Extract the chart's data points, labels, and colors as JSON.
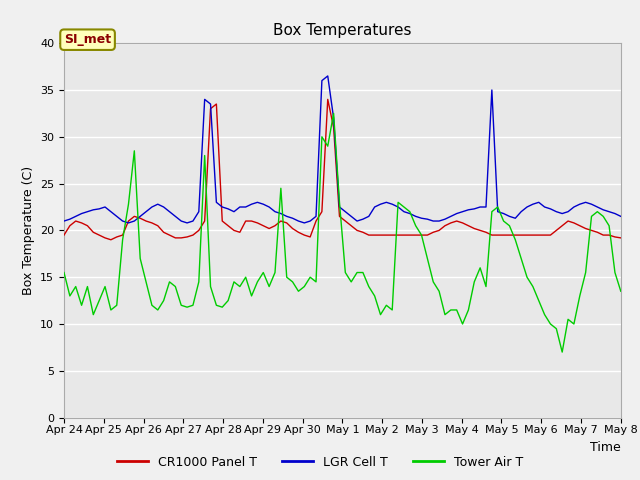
{
  "title": "Box Temperatures",
  "xlabel": "Time",
  "ylabel": "Box Temperature (C)",
  "ylim": [
    0,
    40
  ],
  "yticks": [
    0,
    5,
    10,
    15,
    20,
    25,
    30,
    35,
    40
  ],
  "bg_color": "#e8e8e8",
  "grid_color": "#ffffff",
  "annotation_text": "SI_met",
  "annotation_bg": "#ffffbb",
  "annotation_border": "#888800",
  "legend_entries": [
    "CR1000 Panel T",
    "LGR Cell T",
    "Tower Air T"
  ],
  "line_colors": [
    "#cc0000",
    "#0000cc",
    "#00cc00"
  ],
  "x_tick_labels": [
    "Apr 24",
    "Apr 25",
    "Apr 26",
    "Apr 27",
    "Apr 28",
    "Apr 29",
    "Apr 30",
    "May 1",
    "May 2",
    "May 3",
    "May 4",
    "May 5",
    "May 6",
    "May 7",
    "May 8"
  ],
  "x_tick_positions": [
    0,
    1,
    2,
    3,
    4,
    5,
    6,
    7,
    8,
    9,
    10,
    11,
    12,
    13,
    14
  ],
  "cr1000_panel_t": [
    19.5,
    20.5,
    21.0,
    20.8,
    20.5,
    19.8,
    19.5,
    19.2,
    19.0,
    19.3,
    19.5,
    21.0,
    21.5,
    21.3,
    21.0,
    20.8,
    20.5,
    19.8,
    19.5,
    19.2,
    19.2,
    19.3,
    19.5,
    20.0,
    21.0,
    33.0,
    33.5,
    21.0,
    20.5,
    20.0,
    19.8,
    21.0,
    21.0,
    20.8,
    20.5,
    20.2,
    20.5,
    21.0,
    20.8,
    20.2,
    19.8,
    19.5,
    19.3,
    21.0,
    22.0,
    34.0,
    31.0,
    21.5,
    21.0,
    20.5,
    20.0,
    19.8,
    19.5,
    19.5,
    19.5,
    19.5,
    19.5,
    19.5,
    19.5,
    19.5,
    19.5,
    19.5,
    19.5,
    19.8,
    20.0,
    20.5,
    20.8,
    21.0,
    20.8,
    20.5,
    20.2,
    20.0,
    19.8,
    19.5,
    19.5,
    19.5,
    19.5,
    19.5,
    19.5,
    19.5,
    19.5,
    19.5,
    19.5,
    19.5,
    20.0,
    20.5,
    21.0,
    20.8,
    20.5,
    20.2,
    20.0,
    19.8,
    19.5,
    19.5,
    19.3,
    19.2
  ],
  "lgr_cell_t": [
    21.0,
    21.2,
    21.5,
    21.8,
    22.0,
    22.2,
    22.3,
    22.5,
    22.0,
    21.5,
    21.0,
    20.8,
    21.0,
    21.5,
    22.0,
    22.5,
    22.8,
    22.5,
    22.0,
    21.5,
    21.0,
    20.8,
    21.0,
    22.0,
    34.0,
    33.5,
    23.0,
    22.5,
    22.3,
    22.0,
    22.5,
    22.5,
    22.8,
    23.0,
    22.8,
    22.5,
    22.0,
    21.8,
    21.5,
    21.3,
    21.0,
    20.8,
    21.0,
    21.5,
    36.0,
    36.5,
    32.0,
    22.5,
    22.0,
    21.5,
    21.0,
    21.2,
    21.5,
    22.5,
    22.8,
    23.0,
    22.8,
    22.5,
    22.0,
    21.8,
    21.5,
    21.3,
    21.2,
    21.0,
    21.0,
    21.2,
    21.5,
    21.8,
    22.0,
    22.2,
    22.3,
    22.5,
    22.5,
    35.0,
    22.0,
    21.8,
    21.5,
    21.3,
    22.0,
    22.5,
    22.8,
    23.0,
    22.5,
    22.3,
    22.0,
    21.8,
    22.0,
    22.5,
    22.8,
    23.0,
    22.8,
    22.5,
    22.2,
    22.0,
    21.8,
    21.5
  ],
  "tower_air_t": [
    15.5,
    13.0,
    14.0,
    12.0,
    14.0,
    11.0,
    12.5,
    14.0,
    11.5,
    12.0,
    19.0,
    22.8,
    28.5,
    17.0,
    14.5,
    12.0,
    11.5,
    12.5,
    14.5,
    14.0,
    12.0,
    11.8,
    12.0,
    14.5,
    28.0,
    14.0,
    12.0,
    11.8,
    12.5,
    14.5,
    14.0,
    15.0,
    13.0,
    14.5,
    15.5,
    14.0,
    15.5,
    24.5,
    15.0,
    14.5,
    13.5,
    14.0,
    15.0,
    14.5,
    30.0,
    29.0,
    32.5,
    23.0,
    15.5,
    14.5,
    15.5,
    15.5,
    14.0,
    13.0,
    11.0,
    12.0,
    11.5,
    23.0,
    22.5,
    22.0,
    20.5,
    19.5,
    17.0,
    14.5,
    13.5,
    11.0,
    11.5,
    11.5,
    10.0,
    11.5,
    14.5,
    16.0,
    14.0,
    22.0,
    22.5,
    21.0,
    20.5,
    19.0,
    17.0,
    15.0,
    14.0,
    12.5,
    11.0,
    10.0,
    9.5,
    7.0,
    10.5,
    10.0,
    13.0,
    15.5,
    21.5,
    22.0,
    21.5,
    20.5,
    15.5,
    13.5
  ],
  "fig_bg_color": "#f0f0f0"
}
